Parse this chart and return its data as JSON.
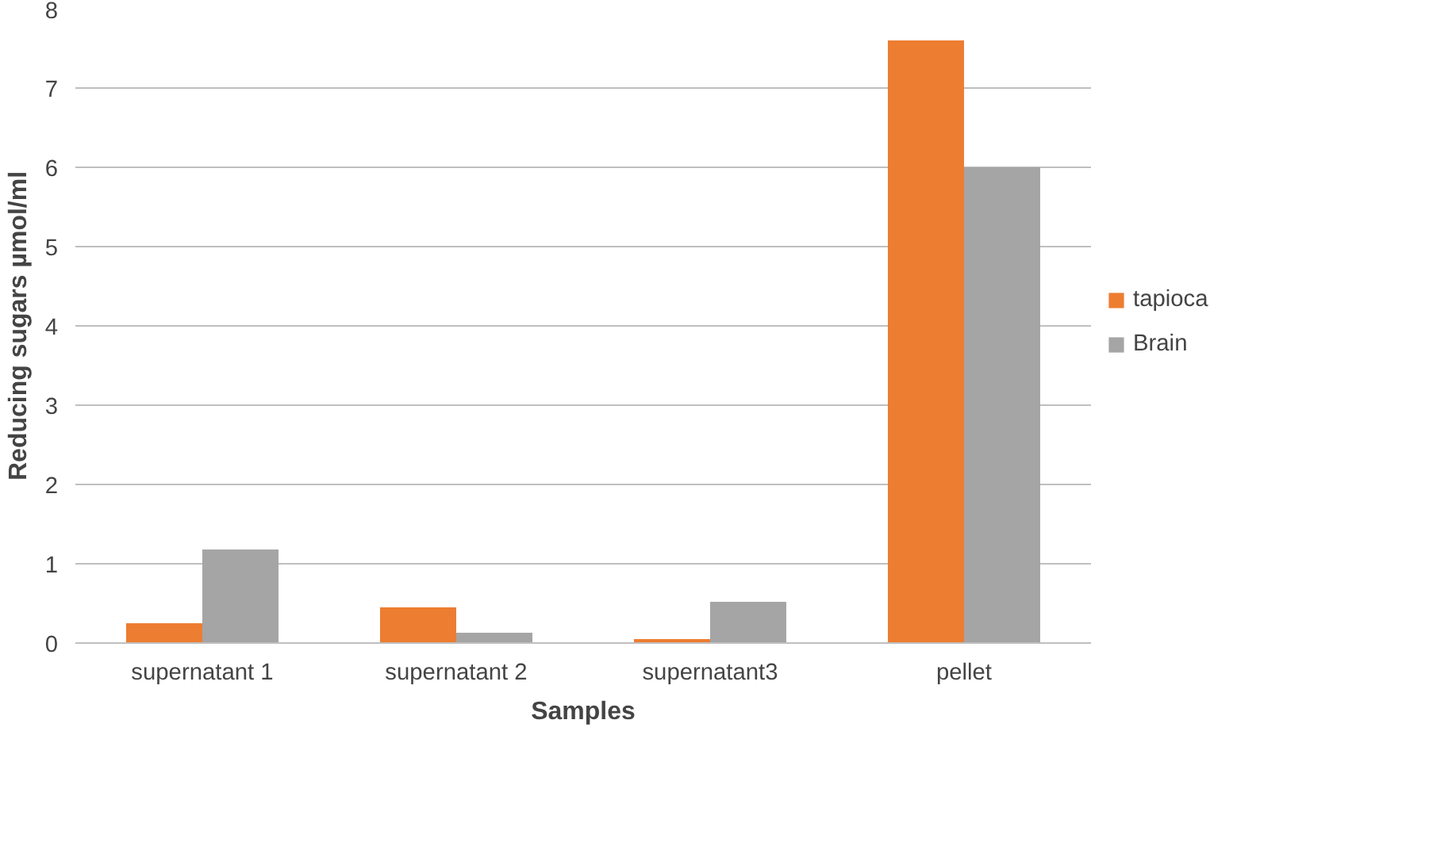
{
  "chart_data": {
    "type": "bar",
    "xlabel": "Samples",
    "ylabel": "Reducing sugars µmol/ml",
    "categories": [
      "supernatant 1",
      "supernatant 2",
      "supernatant3",
      "pellet"
    ],
    "series": [
      {
        "name": "tapioca",
        "color": "#ed7d31",
        "values": [
          0.25,
          0.45,
          0.05,
          7.6
        ]
      },
      {
        "name": "Brain",
        "color": "#a5a5a5",
        "values": [
          1.18,
          0.13,
          0.52,
          6.0
        ]
      }
    ],
    "ylim": [
      0,
      8
    ],
    "yticks": [
      0,
      1,
      2,
      3,
      4,
      5,
      6,
      7,
      8
    ],
    "grid": "y",
    "legend": "right"
  }
}
